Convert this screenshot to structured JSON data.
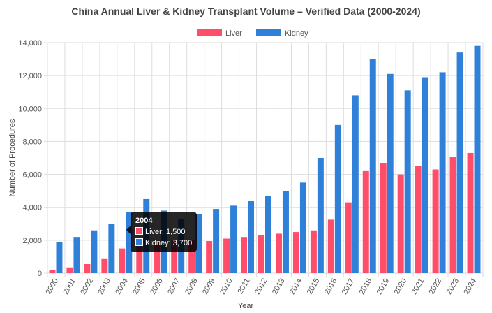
{
  "chart_data": {
    "type": "bar",
    "title": "China Annual Liver & Kidney Transplant Volume – Verified Data (2000-2024)",
    "xlabel": "Year",
    "ylabel": "Number of Procedures",
    "ylim": [
      0,
      14000
    ],
    "yticks": [
      "0",
      "2,000",
      "4,000",
      "6,000",
      "8,000",
      "10,000",
      "12,000",
      "14,000"
    ],
    "grid": true,
    "legend_position": "top",
    "categories": [
      "2000",
      "2001",
      "2002",
      "2003",
      "2004",
      "2005",
      "2006",
      "2007",
      "2008",
      "2009",
      "2010",
      "2011",
      "2012",
      "2013",
      "2014",
      "2015",
      "2016",
      "2017",
      "2018",
      "2019",
      "2020",
      "2021",
      "2022",
      "2023",
      "2024"
    ],
    "series": [
      {
        "name": "Liver",
        "color": "#ff4d6a",
        "values": [
          200,
          350,
          550,
          900,
          1500,
          1800,
          1900,
          2000,
          2050,
          1950,
          2100,
          2200,
          2300,
          2400,
          2500,
          2600,
          3250,
          4300,
          6200,
          6700,
          6000,
          6500,
          6300,
          7050,
          7300
        ]
      },
      {
        "name": "Kidney",
        "color": "#2f80d8",
        "values": [
          1900,
          2200,
          2600,
          3000,
          3700,
          4500,
          3800,
          3300,
          3600,
          3900,
          4100,
          4400,
          4700,
          5000,
          5500,
          7000,
          9000,
          10800,
          13000,
          12100,
          11100,
          11900,
          12200,
          13400,
          13800
        ]
      }
    ],
    "tooltip": {
      "title": "2004",
      "lines": [
        "Liver: 1,500",
        "Kidney: 3,700"
      ]
    }
  }
}
